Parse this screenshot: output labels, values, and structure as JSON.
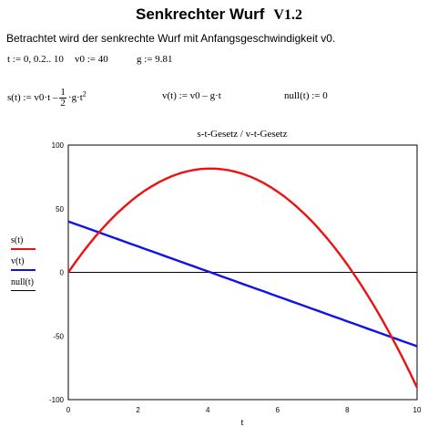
{
  "header": {
    "title": "Senkrechter Wurf",
    "version": "V1.2",
    "description": "Betrachtet wird der senkrechte Wurf mit Anfangsgeschwindigkeit v0."
  },
  "definitions": {
    "t": "t := 0, 0.2.. 10",
    "v0": "v0 := 40",
    "g": "g := 9.81",
    "s_lhs": "s(t) := v0·t –",
    "s_num": "1",
    "s_den": "2",
    "s_rhs": "·g·t",
    "s_exp": "2",
    "v": "v(t) := v0 – g·t",
    "null": "null(t) := 0"
  },
  "chart_data": {
    "type": "line",
    "title": "s-t-Gesetz / v-t-Gesetz",
    "xlabel": "t",
    "ylabel": "",
    "xlim": [
      0,
      10
    ],
    "ylim": [
      -100,
      100
    ],
    "x_ticks": [
      0,
      2,
      4,
      6,
      8,
      10
    ],
    "y_ticks": [
      -100,
      -50,
      0,
      50,
      100
    ],
    "grid": false,
    "legend_position": "left",
    "x": [
      0,
      0.2,
      0.4,
      0.6,
      0.8,
      1,
      1.2,
      1.4,
      1.6,
      1.8,
      2,
      2.2,
      2.4,
      2.6,
      2.8,
      3,
      3.2,
      3.4,
      3.6,
      3.8,
      4,
      4.2,
      4.4,
      4.6,
      4.8,
      5,
      5.2,
      5.4,
      5.6,
      5.8,
      6,
      6.2,
      6.4,
      6.6,
      6.8,
      7,
      7.2,
      7.4,
      7.6,
      7.8,
      8,
      8.2,
      8.4,
      8.6,
      8.8,
      9,
      9.2,
      9.4,
      9.6,
      9.8,
      10
    ],
    "series": [
      {
        "name": "s(t)",
        "color": "#ee1111",
        "values": [
          0,
          7.8,
          15.2,
          22.2,
          28.9,
          35.1,
          40.9,
          46.4,
          51.4,
          56.1,
          60.4,
          64.3,
          67.7,
          70.8,
          73.5,
          75.9,
          77.8,
          79.3,
          80.4,
          81.2,
          81.5,
          81.5,
          81.0,
          80.2,
          79.0,
          77.4,
          75.4,
          73.0,
          70.2,
          67.0,
          63.4,
          59.5,
          55.1,
          50.3,
          45.2,
          39.7,
          33.7,
          27.4,
          20.7,
          13.6,
          6.1,
          -1.8,
          -10.1,
          -18.8,
          -27.8,
          -37.3,
          -47.2,
          -57.4,
          -68.0,
          -79.1,
          -90.5
        ]
      },
      {
        "name": "v(t)",
        "color": "#1111ee",
        "values": [
          40,
          38.0,
          36.1,
          34.1,
          32.2,
          30.2,
          28.2,
          26.3,
          24.3,
          22.3,
          20.4,
          18.4,
          16.5,
          14.5,
          12.5,
          10.6,
          8.6,
          6.6,
          4.7,
          2.7,
          0.8,
          -1.2,
          -3.2,
          -5.1,
          -7.1,
          -9.1,
          -11.0,
          -13.0,
          -14.9,
          -16.9,
          -18.9,
          -20.8,
          -22.8,
          -24.7,
          -26.7,
          -28.7,
          -30.6,
          -32.6,
          -34.6,
          -36.5,
          -38.5,
          -40.4,
          -42.4,
          -44.4,
          -46.3,
          -48.3,
          -50.3,
          -52.2,
          -54.2,
          -56.1,
          -58.1
        ]
      },
      {
        "name": "null(t)",
        "color": "#000000",
        "values": [
          0,
          0,
          0,
          0,
          0,
          0,
          0,
          0,
          0,
          0,
          0,
          0,
          0,
          0,
          0,
          0,
          0,
          0,
          0,
          0,
          0,
          0,
          0,
          0,
          0,
          0,
          0,
          0,
          0,
          0,
          0,
          0,
          0,
          0,
          0,
          0,
          0,
          0,
          0,
          0,
          0,
          0,
          0,
          0,
          0,
          0,
          0,
          0,
          0,
          0,
          0
        ]
      }
    ]
  }
}
